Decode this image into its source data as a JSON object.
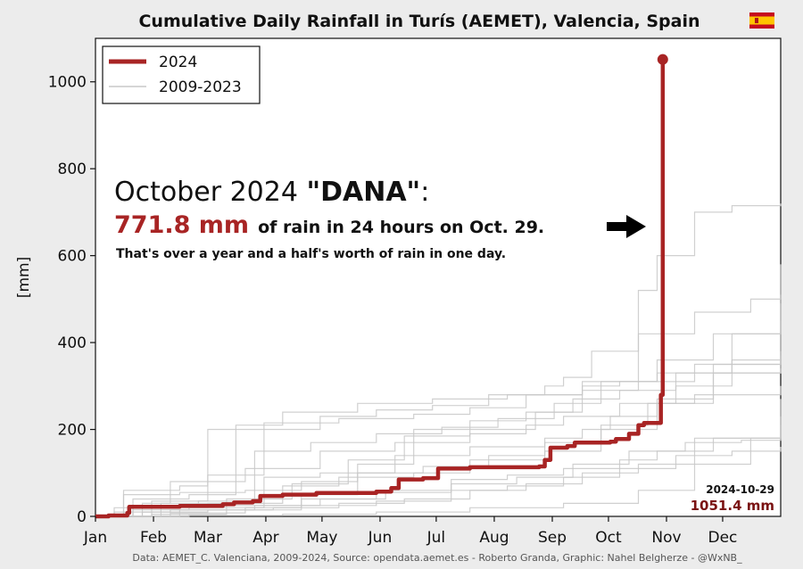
{
  "chart_data": {
    "type": "line",
    "title": "Cumulative Daily Rainfall in Turís (AEMET), Valencia, Spain",
    "flag_icon": "spain-flag-icon",
    "ylabel": "[mm]",
    "xlabel": "",
    "x_categories": [
      "Jan",
      "Feb",
      "Mar",
      "Apr",
      "May",
      "Jun",
      "Jul",
      "Aug",
      "Sep",
      "Oct",
      "Nov",
      "Dec"
    ],
    "xlim_days": [
      0,
      366
    ],
    "ylim": [
      0,
      1100
    ],
    "y_ticks": [
      0,
      200,
      400,
      600,
      800,
      1000
    ],
    "grid": false,
    "legend": {
      "placement": "top-left",
      "entries": [
        {
          "label": "2024",
          "color": "#a82424"
        },
        {
          "label": "2009-2023",
          "color": "#c8c8c8"
        }
      ]
    },
    "series": [
      {
        "name": "2024",
        "color": "#a82424",
        "points": [
          [
            0,
            0
          ],
          [
            7,
            2
          ],
          [
            17,
            8
          ],
          [
            18,
            22
          ],
          [
            45,
            24
          ],
          [
            68,
            28
          ],
          [
            74,
            32
          ],
          [
            84,
            35
          ],
          [
            88,
            47
          ],
          [
            100,
            50
          ],
          [
            118,
            54
          ],
          [
            150,
            57
          ],
          [
            158,
            65
          ],
          [
            162,
            85
          ],
          [
            175,
            88
          ],
          [
            183,
            110
          ],
          [
            200,
            113
          ],
          [
            237,
            115
          ],
          [
            240,
            130
          ],
          [
            243,
            158
          ],
          [
            252,
            162
          ],
          [
            256,
            170
          ],
          [
            275,
            172
          ],
          [
            278,
            178
          ],
          [
            285,
            190
          ],
          [
            290,
            210
          ],
          [
            293,
            215
          ],
          [
            302,
            279.6
          ],
          [
            303,
            1051.4
          ]
        ]
      },
      {
        "name": "",
        "color": "#c8c8c8",
        "points": [
          [
            0,
            0
          ],
          [
            15,
            60
          ],
          [
            45,
            70
          ],
          [
            60,
            95
          ],
          [
            90,
            200
          ],
          [
            120,
            230
          ],
          [
            150,
            245
          ],
          [
            180,
            255
          ],
          [
            210,
            280
          ],
          [
            240,
            300
          ],
          [
            250,
            320
          ],
          [
            265,
            380
          ],
          [
            290,
            420
          ],
          [
            320,
            470
          ],
          [
            350,
            500
          ],
          [
            366,
            510
          ]
        ]
      },
      {
        "name": "",
        "color": "#c8c8c8",
        "points": [
          [
            0,
            0
          ],
          [
            20,
            40
          ],
          [
            50,
            50
          ],
          [
            75,
            210
          ],
          [
            100,
            240
          ],
          [
            140,
            260
          ],
          [
            180,
            270
          ],
          [
            220,
            280
          ],
          [
            260,
            300
          ],
          [
            280,
            310
          ],
          [
            290,
            520
          ],
          [
            300,
            600
          ],
          [
            320,
            700
          ],
          [
            340,
            715
          ],
          [
            366,
            720
          ]
        ]
      },
      {
        "name": "",
        "color": "#c8c8c8",
        "points": [
          [
            0,
            0
          ],
          [
            30,
            20
          ],
          [
            60,
            30
          ],
          [
            100,
            70
          ],
          [
            130,
            90
          ],
          [
            170,
            100
          ],
          [
            200,
            130
          ],
          [
            240,
            150
          ],
          [
            270,
            200
          ],
          [
            300,
            260
          ],
          [
            330,
            330
          ],
          [
            366,
            340
          ]
        ]
      },
      {
        "name": "",
        "color": "#c8c8c8",
        "points": [
          [
            0,
            0
          ],
          [
            25,
            30
          ],
          [
            40,
            80
          ],
          [
            80,
            110
          ],
          [
            120,
            150
          ],
          [
            160,
            170
          ],
          [
            200,
            190
          ],
          [
            230,
            210
          ],
          [
            250,
            230
          ],
          [
            280,
            260
          ],
          [
            310,
            330
          ],
          [
            340,
            360
          ],
          [
            366,
            380
          ]
        ]
      },
      {
        "name": "",
        "color": "#c8c8c8",
        "points": [
          [
            0,
            0
          ],
          [
            10,
            10
          ],
          [
            40,
            15
          ],
          [
            80,
            20
          ],
          [
            110,
            50
          ],
          [
            140,
            120
          ],
          [
            170,
            200
          ],
          [
            200,
            220
          ],
          [
            230,
            240
          ],
          [
            260,
            290
          ],
          [
            290,
            310
          ],
          [
            320,
            350
          ],
          [
            366,
            450
          ]
        ]
      },
      {
        "name": "",
        "color": "#c8c8c8",
        "points": [
          [
            0,
            0
          ],
          [
            30,
            5
          ],
          [
            70,
            25
          ],
          [
            110,
            40
          ],
          [
            150,
            55
          ],
          [
            190,
            85
          ],
          [
            220,
            95
          ],
          [
            250,
            110
          ],
          [
            280,
            130
          ],
          [
            300,
            150
          ],
          [
            330,
            180
          ],
          [
            366,
            210
          ]
        ]
      },
      {
        "name": "",
        "color": "#c8c8c8",
        "points": [
          [
            0,
            0
          ],
          [
            20,
            15
          ],
          [
            50,
            20
          ],
          [
            90,
            90
          ],
          [
            120,
            100
          ],
          [
            160,
            140
          ],
          [
            200,
            160
          ],
          [
            240,
            180
          ],
          [
            260,
            200
          ],
          [
            275,
            230
          ],
          [
            300,
            270
          ],
          [
            330,
            330
          ],
          [
            366,
            370
          ]
        ]
      },
      {
        "name": "",
        "color": "#c8c8c8",
        "points": [
          [
            0,
            0
          ],
          [
            40,
            8
          ],
          [
            80,
            15
          ],
          [
            110,
            25
          ],
          [
            150,
            35
          ],
          [
            190,
            60
          ],
          [
            220,
            70
          ],
          [
            250,
            90
          ],
          [
            280,
            110
          ],
          [
            310,
            140
          ],
          [
            340,
            150
          ],
          [
            366,
            160
          ]
        ]
      },
      {
        "name": "",
        "color": "#c8c8c8",
        "points": [
          [
            0,
            0
          ],
          [
            10,
            20
          ],
          [
            30,
            35
          ],
          [
            60,
            200
          ],
          [
            90,
            215
          ],
          [
            130,
            225
          ],
          [
            170,
            235
          ],
          [
            200,
            250
          ],
          [
            230,
            280
          ],
          [
            260,
            310
          ],
          [
            300,
            360
          ],
          [
            330,
            420
          ],
          [
            366,
            490
          ]
        ]
      },
      {
        "name": "",
        "color": "#c8c8c8",
        "points": [
          [
            0,
            0
          ],
          [
            50,
            2
          ],
          [
            100,
            5
          ],
          [
            150,
            10
          ],
          [
            200,
            20
          ],
          [
            250,
            30
          ],
          [
            290,
            60
          ],
          [
            320,
            120
          ],
          [
            350,
            180
          ],
          [
            366,
            230
          ]
        ]
      },
      {
        "name": "",
        "color": "#c8c8c8",
        "points": [
          [
            0,
            0
          ],
          [
            15,
            50
          ],
          [
            45,
            55
          ],
          [
            80,
            60
          ],
          [
            110,
            80
          ],
          [
            140,
            100
          ],
          [
            175,
            115
          ],
          [
            210,
            140
          ],
          [
            240,
            170
          ],
          [
            270,
            210
          ],
          [
            295,
            260
          ],
          [
            320,
            280
          ],
          [
            366,
            300
          ]
        ]
      },
      {
        "name": "",
        "color": "#c8c8c8",
        "points": [
          [
            0,
            0
          ],
          [
            35,
            30
          ],
          [
            70,
            40
          ],
          [
            105,
            75
          ],
          [
            135,
            130
          ],
          [
            165,
            185
          ],
          [
            200,
            200
          ],
          [
            235,
            240
          ],
          [
            255,
            270
          ],
          [
            280,
            290
          ],
          [
            310,
            300
          ],
          [
            340,
            420
          ],
          [
            366,
            580
          ]
        ]
      },
      {
        "name": "",
        "color": "#c8c8c8",
        "points": [
          [
            0,
            0
          ],
          [
            25,
            10
          ],
          [
            60,
            15
          ],
          [
            95,
            20
          ],
          [
            130,
            30
          ],
          [
            165,
            40
          ],
          [
            200,
            60
          ],
          [
            230,
            75
          ],
          [
            260,
            100
          ],
          [
            290,
            120
          ],
          [
            320,
            180
          ],
          [
            366,
            270
          ]
        ]
      },
      {
        "name": "",
        "color": "#c8c8c8",
        "points": [
          [
            0,
            0
          ],
          [
            20,
            25
          ],
          [
            55,
            35
          ],
          [
            85,
            150
          ],
          [
            115,
            170
          ],
          [
            150,
            190
          ],
          [
            185,
            205
          ],
          [
            215,
            225
          ],
          [
            245,
            260
          ],
          [
            270,
            310
          ],
          [
            300,
            330
          ],
          [
            330,
            350
          ],
          [
            366,
            360
          ]
        ]
      },
      {
        "name": "",
        "color": "#c8c8c8",
        "points": [
          [
            0,
            0
          ],
          [
            45,
            15
          ],
          [
            85,
            25
          ],
          [
            120,
            40
          ],
          [
            155,
            60
          ],
          [
            190,
            75
          ],
          [
            225,
            90
          ],
          [
            255,
            120
          ],
          [
            285,
            150
          ],
          [
            315,
            170
          ],
          [
            345,
            175
          ],
          [
            366,
            180
          ]
        ]
      }
    ],
    "annotations": {
      "headline_prefix": "October 2024 ",
      "headline_bold": "\"DANA\"",
      "headline_suffix": ":",
      "amount": "771.8 mm",
      "amount_text": "of rain in 24 hours on Oct. 29.",
      "subtext": "That's over a year and a half's worth of rain in one day.",
      "arrow_icon": "right-arrow-icon",
      "end_date": "2024-10-29",
      "end_value": "1051.4 mm"
    },
    "footer": "Data: AEMET_C. Valenciana, 2009-2024, Source: opendata.aemet.es - Roberto Granda, Graphic: Nahel Belgherze - @WxNB_"
  }
}
